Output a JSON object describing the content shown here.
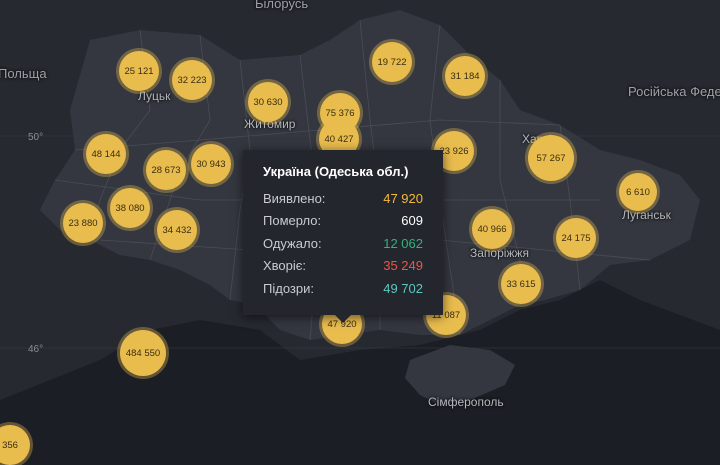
{
  "map": {
    "places": [
      {
        "name": "Білорусь",
        "kind": "country",
        "anchor": "belarus"
      },
      {
        "name": "Польща",
        "kind": "country",
        "anchor": "poland"
      },
      {
        "name": "Російська Федерація",
        "kind": "country",
        "anchor": "russia"
      },
      {
        "name": "Луцьк",
        "kind": "city",
        "anchor": "lutsk"
      },
      {
        "name": "Житомир",
        "kind": "city",
        "anchor": "zhytomyr"
      },
      {
        "name": "Харків",
        "kind": "city",
        "anchor": "kharkiv"
      },
      {
        "name": "Луганськ",
        "kind": "city",
        "anchor": "luhansk"
      },
      {
        "name": "Запоріжжя",
        "kind": "city",
        "anchor": "zaporizhzhia"
      },
      {
        "name": "Сімферополь",
        "kind": "city",
        "anchor": "simferopol"
      }
    ],
    "latitude_labels": [
      "50°",
      "46°"
    ]
  },
  "markers": [
    {
      "value": "25 121",
      "region": "volyn"
    },
    {
      "value": "32 223",
      "region": "rivne"
    },
    {
      "value": "19 722",
      "region": "chernihiv"
    },
    {
      "value": "31 184",
      "region": "sumy"
    },
    {
      "value": "30 630",
      "region": "zhytomyr"
    },
    {
      "value": "75 376",
      "region": "kyiv-city"
    },
    {
      "value": "40 427",
      "region": "kyiv-oblast"
    },
    {
      "value": "48 144",
      "region": "lviv"
    },
    {
      "value": "28 673",
      "region": "ternopil"
    },
    {
      "value": "30 943",
      "region": "khmelnytskyi"
    },
    {
      "value": "23 926",
      "region": "poltava"
    },
    {
      "value": "57 267",
      "region": "kharkiv"
    },
    {
      "value": "6 610",
      "region": "luhansk"
    },
    {
      "value": "38 080",
      "region": "ivano-frankivsk"
    },
    {
      "value": "23 880",
      "region": "zakarpattia"
    },
    {
      "value": "34 432",
      "region": "chernivtsi"
    },
    {
      "value": "40 966",
      "region": "dnipropetrovsk"
    },
    {
      "value": "24 175",
      "region": "donetsk"
    },
    {
      "value": "33 615",
      "region": "zaporizhzhia"
    },
    {
      "value": "11 087",
      "region": "kherson"
    },
    {
      "value": "47 920",
      "region": "odesa"
    },
    {
      "value": "484 550",
      "region": "moldova"
    },
    {
      "value": "356",
      "region": "romania-edge"
    }
  ],
  "tooltip": {
    "title": "Україна (Одеська обл.)",
    "rows": [
      {
        "label": "Виявлено:",
        "value": "47 920",
        "color": "#f5b93c"
      },
      {
        "label": "Померло:",
        "value": "609",
        "color": "#ffffff"
      },
      {
        "label": "Одужало:",
        "value": "12 062",
        "color": "#34b27b"
      },
      {
        "label": "Хворіє:",
        "value": "35 249",
        "color": "#e8564a"
      },
      {
        "label": "Підозри:",
        "value": "49 702",
        "color": "#5fc7c0"
      }
    ]
  },
  "colors": {
    "background": "#1c1e25",
    "land": "#2e3139",
    "marker": "#e9bc4e"
  }
}
